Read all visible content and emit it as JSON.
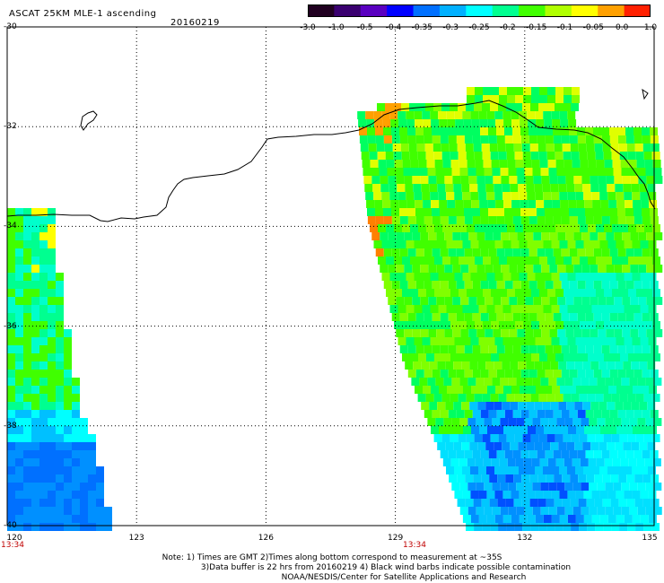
{
  "title": "ASCAT 25KM MLE-1 ascending",
  "date": "20160219",
  "colorbar": {
    "labels": [
      "-3.0",
      "-1.0",
      "-0.5",
      "-0.4",
      "-0.35",
      "-0.3",
      "-0.25",
      "-0.2",
      "-0.15",
      "-0.1",
      "-0.05",
      "0.0",
      "1.0"
    ],
    "colors": [
      "#200020",
      "#3a0070",
      "#5a00c0",
      "#0000ff",
      "#0070ff",
      "#00b0ff",
      "#00ffff",
      "#00ff90",
      "#40ff00",
      "#b0ff00",
      "#ffff00",
      "#ffa000",
      "#ff2000"
    ]
  },
  "axes": {
    "lat_labels": [
      "-30",
      "-32",
      "-34",
      "-36",
      "-38",
      "-40"
    ],
    "lon_labels": [
      "120",
      "123",
      "126",
      "129",
      "132",
      "135"
    ]
  },
  "time_labels": [
    "13:34",
    "13:34"
  ],
  "notes": [
    "Note: 1) Times are GMT 2)Times along bottom correspond to measurement at ~35S",
    "3)Data buffer is 22 hrs from 20160219 4) Black wind barbs indicate possible contamination",
    "NOAA/NESDIS/Center for Satellite Applications and Research"
  ]
}
